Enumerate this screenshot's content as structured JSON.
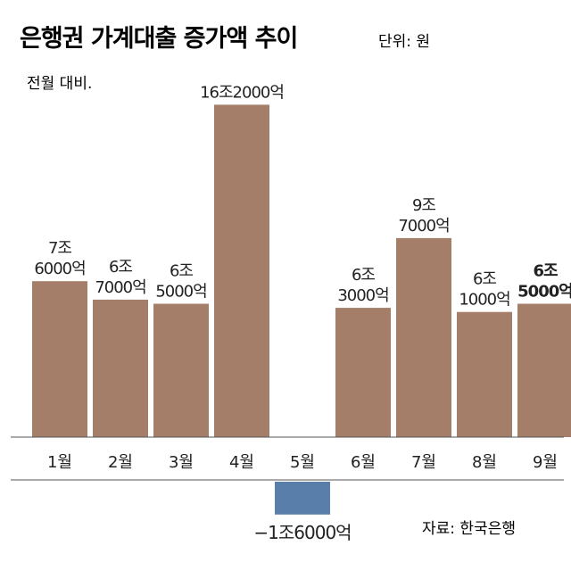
{
  "chart_data": {
    "type": "bar",
    "title": "은행권 가계대출 증가액 추이",
    "unit": "단위: 원",
    "subtitle": "전월 대비.",
    "source": "자료: 한국은행",
    "categories": [
      "1월",
      "2월",
      "3월",
      "4월",
      "5월",
      "6월",
      "7월",
      "8월",
      "9월"
    ],
    "values": [
      7.6,
      6.7,
      6.5,
      16.2,
      -1.6,
      6.3,
      9.7,
      6.1,
      6.5
    ],
    "value_unit": "조원",
    "data_labels": [
      [
        "7조",
        "6000억"
      ],
      [
        "6조",
        "7000억"
      ],
      [
        "6조",
        "5000억"
      ],
      [
        "16조2000억"
      ],
      [
        "−1조6000억"
      ],
      [
        "6조",
        "3000억"
      ],
      [
        "9조",
        "7000억"
      ],
      [
        "6조",
        "1000억"
      ],
      [
        "6조",
        "5000억"
      ]
    ],
    "highlight_index": 8,
    "colors": {
      "positive": "#a47e68",
      "negative": "#5a7eaa",
      "background": "#ffffff",
      "text": "#222222",
      "axis": "#555555"
    },
    "grid": false
  }
}
